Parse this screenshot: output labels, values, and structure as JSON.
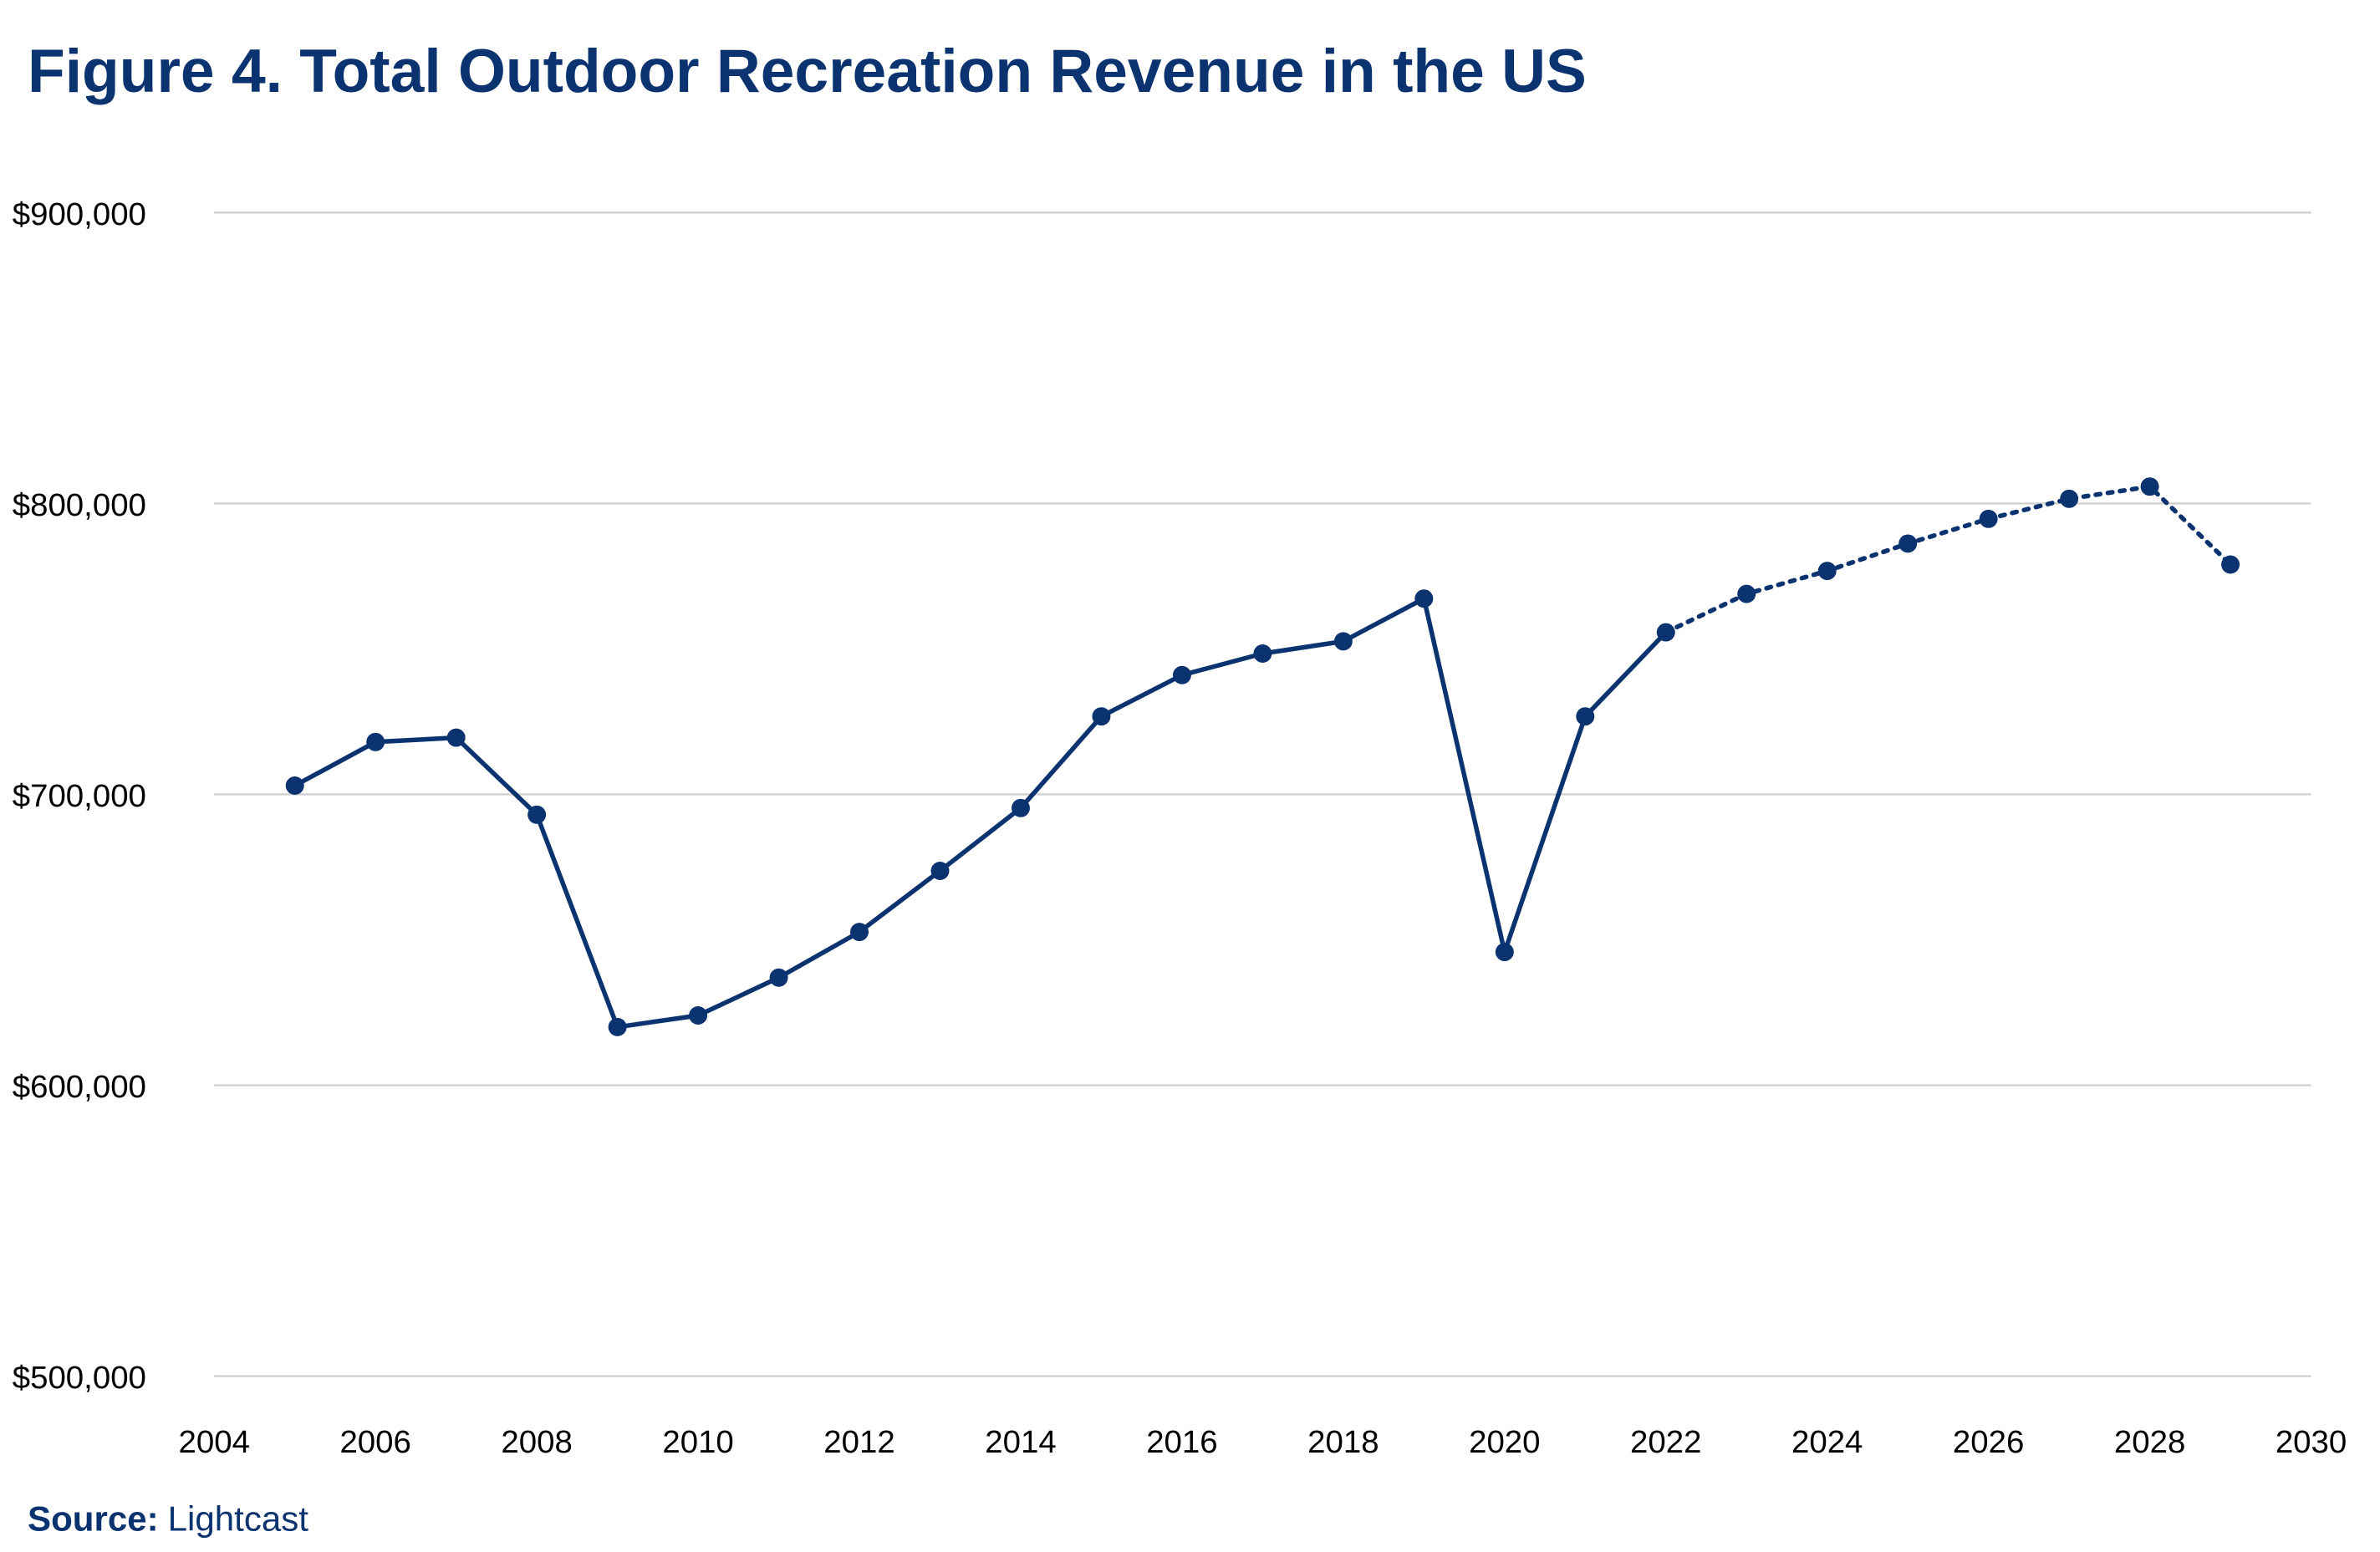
{
  "chart_data": {
    "type": "line",
    "title": "Figure 4. Total Outdoor Recreation Revenue in the US",
    "xlabel": "",
    "ylabel": "",
    "xlim": [
      2004,
      2030
    ],
    "ylim": [
      500000,
      900000
    ],
    "x_ticks": [
      "2004",
      "2006",
      "2008",
      "2010",
      "2012",
      "2014",
      "2016",
      "2018",
      "2020",
      "2022",
      "2024",
      "2026",
      "2028",
      "2030"
    ],
    "y_ticks": [
      "$500,000",
      "$600,000",
      "$700,000",
      "$800,000",
      "$900,000"
    ],
    "grid": "horizontal",
    "legend": "none",
    "color": "#0b3370",
    "series": [
      {
        "style": "solid",
        "x": [
          2005,
          2006,
          2007,
          2008,
          2009,
          2010,
          2011,
          2012,
          2013,
          2014,
          2015,
          2016,
          2017,
          2018,
          2019,
          2020,
          2021,
          2022
        ],
        "values": [
          703000,
          718000,
          719500,
          693000,
          620000,
          624000,
          637000,
          652700,
          673700,
          695300,
          726800,
          741000,
          748400,
          752600,
          767300,
          645800,
          726800,
          755700
        ]
      },
      {
        "style": "dotted",
        "x": [
          2022,
          2023,
          2024,
          2025,
          2026,
          2027,
          2028,
          2029
        ],
        "values": [
          755700,
          768900,
          776800,
          786200,
          794700,
          801600,
          805800,
          779000
        ]
      }
    ]
  },
  "source": {
    "label": "Source:",
    "value": "Lightcast"
  }
}
